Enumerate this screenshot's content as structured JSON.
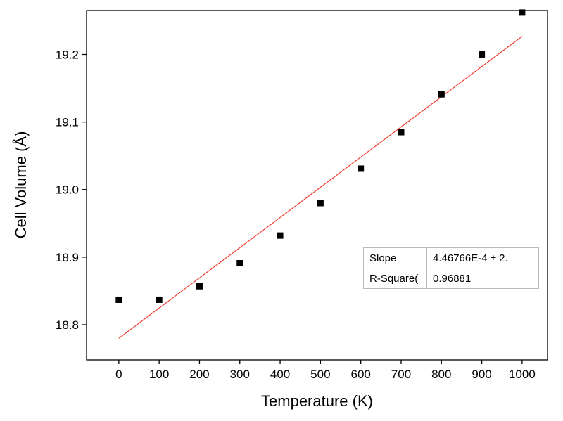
{
  "chart_data": {
    "type": "scatter",
    "title": "",
    "xlabel": "Temperature (K)",
    "ylabel": "Cell Volume (Å)",
    "xlim": [
      -80,
      1063
    ],
    "ylim": [
      18.748,
      19.265
    ],
    "xticks": [
      0,
      100,
      200,
      300,
      400,
      500,
      600,
      700,
      800,
      900,
      1000
    ],
    "yticks": [
      18.8,
      18.9,
      19.0,
      19.1,
      19.2
    ],
    "grid": false,
    "frame": true,
    "marker_color": "#000000",
    "fit_line_color": "#ef3b2d",
    "series": [
      {
        "name": "Cell Volume",
        "type": "scatter",
        "marker": "square",
        "x": [
          0,
          100,
          200,
          300,
          400,
          500,
          600,
          700,
          800,
          900,
          1000
        ],
        "y": [
          18.837,
          18.837,
          18.857,
          18.891,
          18.932,
          18.98,
          19.031,
          19.085,
          19.141,
          19.2,
          19.262
        ]
      },
      {
        "name": "Linear Fit",
        "type": "line",
        "fit": {
          "slope": 0.000446766,
          "intercept": 18.78,
          "x_start": 0,
          "x_end": 1000
        }
      }
    ]
  },
  "stats": {
    "rows": [
      {
        "label": "Slope",
        "value": "4.46766E-4 ± 2."
      },
      {
        "label": "R-Square(",
        "value": "0.96881"
      }
    ]
  }
}
